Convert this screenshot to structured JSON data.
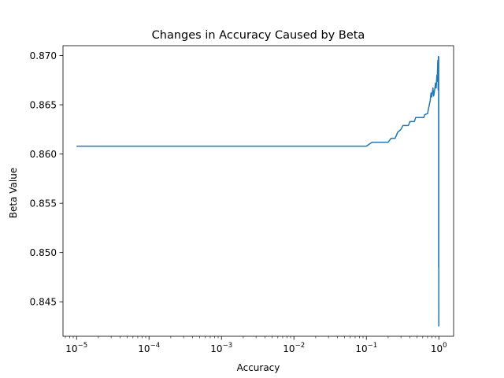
{
  "chart_data": {
    "type": "line",
    "title": "Changes in Accuracy Caused by Beta",
    "xlabel": "Accuracy",
    "ylabel": "Beta Value",
    "xscale": "log",
    "xlim": [
      6.5e-06,
      1.6
    ],
    "ylim": [
      0.8415,
      0.871
    ],
    "x_ticks": [
      1e-05,
      0.0001,
      0.001,
      0.01,
      0.1,
      1
    ],
    "x_tick_labels": [
      {
        "base": "10",
        "exp": "−5"
      },
      {
        "base": "10",
        "exp": "−4"
      },
      {
        "base": "10",
        "exp": "−3"
      },
      {
        "base": "10",
        "exp": "−2"
      },
      {
        "base": "10",
        "exp": "−1"
      },
      {
        "base": "10",
        "exp": "0"
      }
    ],
    "y_ticks": [
      0.845,
      0.85,
      0.855,
      0.86,
      0.865,
      0.87
    ],
    "y_tick_labels": [
      "0.845",
      "0.850",
      "0.855",
      "0.860",
      "0.865",
      "0.870"
    ],
    "grid": false,
    "series": [
      {
        "color": "#1f77b4",
        "points": [
          [
            1e-05,
            0.8608
          ],
          [
            0.1,
            0.8608
          ],
          [
            0.12,
            0.8612
          ],
          [
            0.2,
            0.8612
          ],
          [
            0.22,
            0.8616
          ],
          [
            0.25,
            0.8616
          ],
          [
            0.27,
            0.8622
          ],
          [
            0.3,
            0.8625
          ],
          [
            0.32,
            0.8629
          ],
          [
            0.38,
            0.8629
          ],
          [
            0.4,
            0.8633
          ],
          [
            0.46,
            0.8633
          ],
          [
            0.48,
            0.8637
          ],
          [
            0.62,
            0.8637
          ],
          [
            0.64,
            0.864
          ],
          [
            0.7,
            0.8641
          ],
          [
            0.72,
            0.8646
          ],
          [
            0.76,
            0.8654
          ],
          [
            0.78,
            0.8662
          ],
          [
            0.8,
            0.8658
          ],
          [
            0.83,
            0.8667
          ],
          [
            0.85,
            0.8659
          ],
          [
            0.88,
            0.8666
          ],
          [
            0.9,
            0.8672
          ],
          [
            0.92,
            0.8667
          ],
          [
            0.94,
            0.868
          ],
          [
            0.95,
            0.8674
          ],
          [
            0.96,
            0.8685
          ],
          [
            0.97,
            0.8695
          ],
          [
            0.98,
            0.8665
          ],
          [
            0.985,
            0.8699
          ],
          [
            0.99,
            0.8695
          ],
          [
            0.993,
            0.8699
          ],
          [
            0.995,
            0.8485
          ],
          [
            0.997,
            0.8698
          ],
          [
            0.999,
            0.8425
          ]
        ]
      }
    ]
  }
}
